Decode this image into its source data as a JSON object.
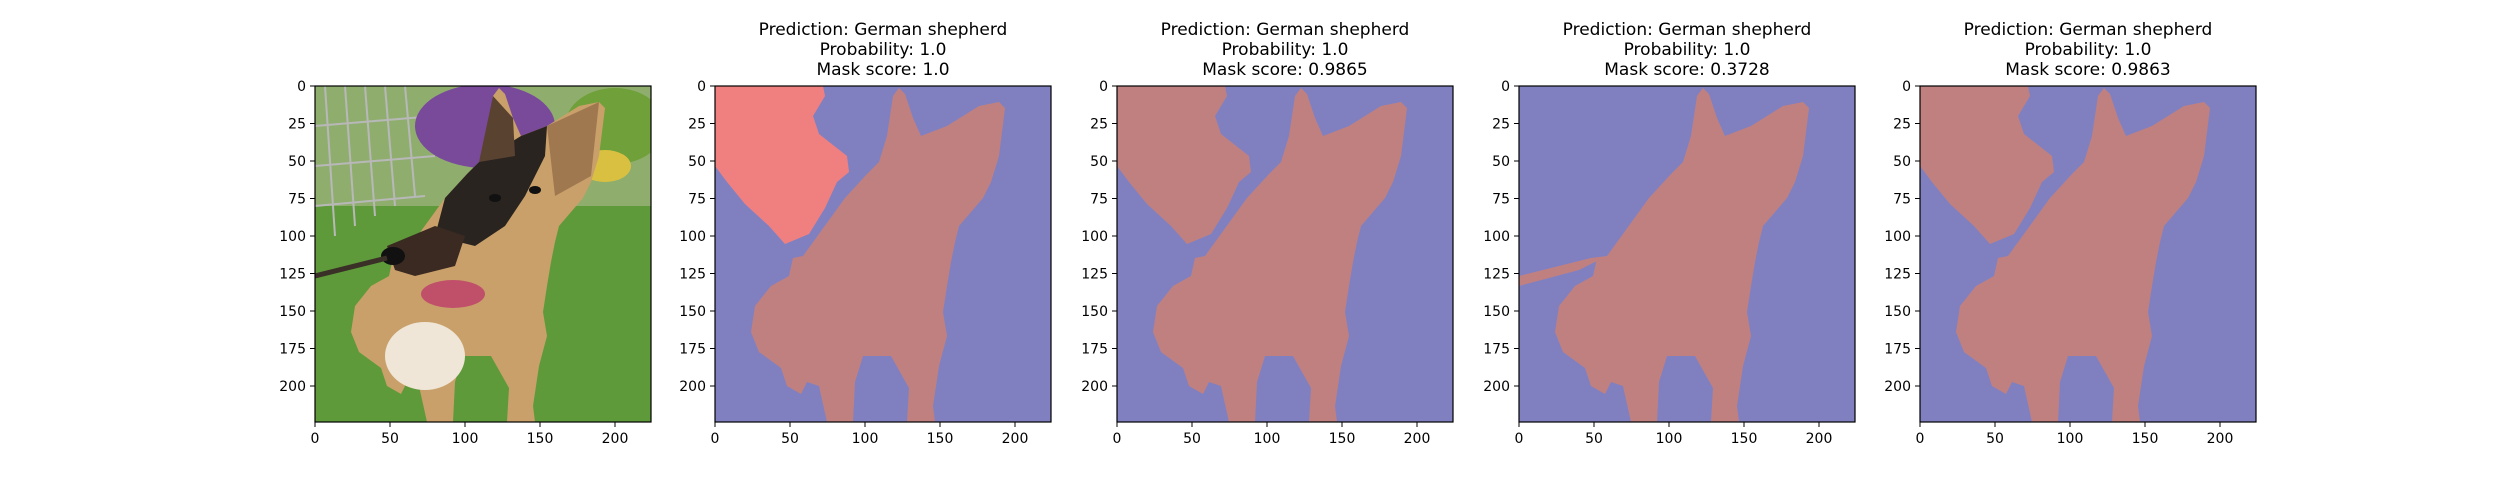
{
  "figure": {
    "panels": [
      {
        "kind": "photo",
        "title": [],
        "subject": "german-shepherd-puppy-on-grass"
      },
      {
        "kind": "mask",
        "title": [
          "Prediction: German shepherd",
          "Probability: 1.0",
          "Mask score: 1.0"
        ]
      },
      {
        "kind": "mask",
        "title": [
          "Prediction: German shepherd",
          "Probability: 1.0",
          "Mask score: 0.9865"
        ]
      },
      {
        "kind": "mask",
        "title": [
          "Prediction: German shepherd",
          "Probability: 1.0",
          "Mask score: 0.3728"
        ]
      },
      {
        "kind": "mask",
        "title": [
          "Prediction: German shepherd",
          "Probability: 1.0",
          "Mask score: 0.9863"
        ]
      }
    ],
    "x_ticks": [
      "0",
      "50",
      "100",
      "150",
      "200"
    ],
    "y_ticks": [
      "0",
      "25",
      "50",
      "75",
      "100",
      "125",
      "150",
      "175",
      "200"
    ],
    "x_tick_values": [
      0,
      50,
      100,
      150,
      200
    ],
    "y_tick_values": [
      0,
      25,
      50,
      75,
      100,
      125,
      150,
      175,
      200
    ],
    "image_extent": [
      0,
      224
    ],
    "colors": {
      "mask_background": "#8080c0",
      "mask_foreground": "#c08080",
      "mask_highlight": "#f08080",
      "grass": "#5e9a3a",
      "fur_tan": "#c9a06a",
      "fur_black": "#2a2420"
    }
  }
}
